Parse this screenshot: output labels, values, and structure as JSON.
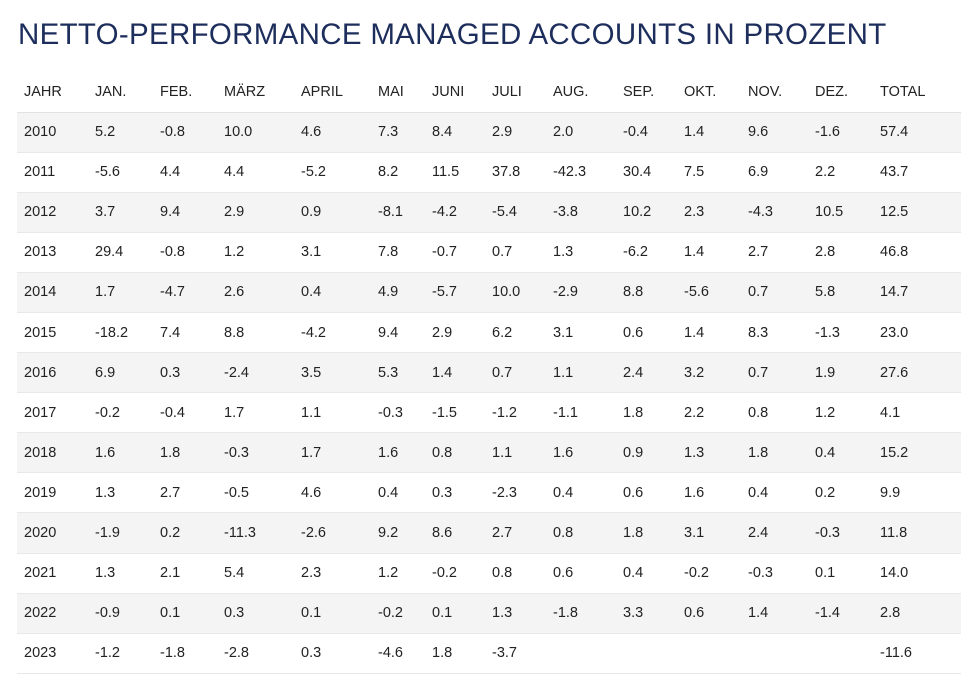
{
  "title": "NETTO-PERFORMANCE MANAGED ACCOUNTS IN PROZENT",
  "headers": [
    "JAHR",
    "JAN.",
    "FEB.",
    "MÄRZ",
    "APRIL",
    "MAI",
    "JUNI",
    "JULI",
    "AUG.",
    "SEP.",
    "OKT.",
    "NOV.",
    "DEZ.",
    "TOTAL"
  ],
  "rows": [
    [
      "2010",
      "5.2",
      "-0.8",
      "10.0",
      "4.6",
      "7.3",
      "8.4",
      "2.9",
      "2.0",
      "-0.4",
      "1.4",
      "9.6",
      "-1.6",
      "57.4"
    ],
    [
      "2011",
      "-5.6",
      "4.4",
      "4.4",
      "-5.2",
      "8.2",
      "11.5",
      "37.8",
      "-42.3",
      "30.4",
      "7.5",
      "6.9",
      "2.2",
      "43.7"
    ],
    [
      "2012",
      "3.7",
      "9.4",
      "2.9",
      "0.9",
      "-8.1",
      "-4.2",
      "-5.4",
      "-3.8",
      "10.2",
      "2.3",
      "-4.3",
      "10.5",
      "12.5"
    ],
    [
      "2013",
      "29.4",
      "-0.8",
      "1.2",
      "3.1",
      "7.8",
      "-0.7",
      "0.7",
      "1.3",
      "-6.2",
      "1.4",
      "2.7",
      "2.8",
      "46.8"
    ],
    [
      "2014",
      "1.7",
      "-4.7",
      "2.6",
      "0.4",
      "4.9",
      "-5.7",
      "10.0",
      "-2.9",
      "8.8",
      "-5.6",
      "0.7",
      "5.8",
      "14.7"
    ],
    [
      "2015",
      "-18.2",
      "7.4",
      "8.8",
      "-4.2",
      "9.4",
      "2.9",
      "6.2",
      "3.1",
      "0.6",
      "1.4",
      "8.3",
      "-1.3",
      "23.0"
    ],
    [
      "2016",
      "6.9",
      "0.3",
      "-2.4",
      "3.5",
      "5.3",
      "1.4",
      "0.7",
      "1.1",
      "2.4",
      "3.2",
      "0.7",
      "1.9",
      "27.6"
    ],
    [
      "2017",
      "-0.2",
      "-0.4",
      "1.7",
      "1.1",
      "-0.3",
      "-1.5",
      "-1.2",
      "-1.1",
      "1.8",
      "2.2",
      "0.8",
      "1.2",
      "4.1"
    ],
    [
      "2018",
      "1.6",
      "1.8",
      "-0.3",
      "1.7",
      "1.6",
      "0.8",
      "1.1",
      "1.6",
      "0.9",
      "1.3",
      "1.8",
      "0.4",
      "15.2"
    ],
    [
      "2019",
      "1.3",
      "2.7",
      "-0.5",
      "4.6",
      "0.4",
      "0.3",
      "-2.3",
      "0.4",
      "0.6",
      "1.6",
      "0.4",
      "0.2",
      "9.9"
    ],
    [
      "2020",
      "-1.9",
      "0.2",
      "-11.3",
      "-2.6",
      "9.2",
      "8.6",
      "2.7",
      "0.8",
      "1.8",
      "3.1",
      "2.4",
      "-0.3",
      "11.8"
    ],
    [
      "2021",
      "1.3",
      "2.1",
      "5.4",
      "2.3",
      "1.2",
      "-0.2",
      "0.8",
      "0.6",
      "0.4",
      "-0.2",
      "-0.3",
      "0.1",
      "14.0"
    ],
    [
      "2022",
      "-0.9",
      "0.1",
      "0.3",
      "0.1",
      "-0.2",
      "0.1",
      "1.3",
      "-1.8",
      "3.3",
      "0.6",
      "1.4",
      "-1.4",
      "2.8"
    ],
    [
      "2023",
      "-1.2",
      "-1.8",
      "-2.8",
      "0.3",
      "-4.6",
      "1.8",
      "-3.7",
      "",
      "",
      "",
      "",
      "",
      "-11.6"
    ]
  ]
}
